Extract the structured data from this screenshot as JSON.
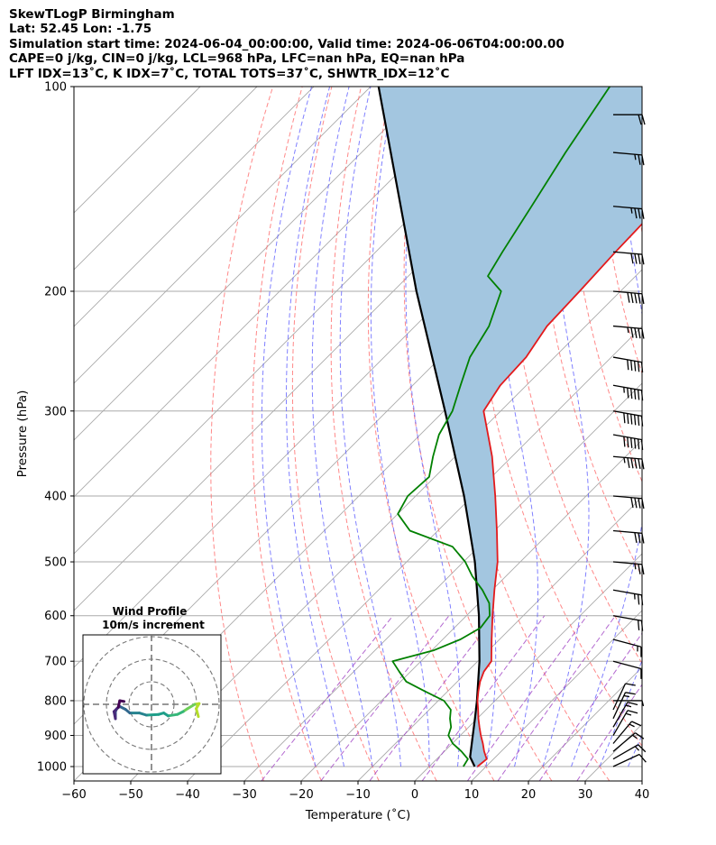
{
  "header": {
    "line1": "SkewTLogP Birmingham",
    "line2": "Lat: 52.45   Lon: -1.75",
    "line3": "Simulation start time: 2024-06-04_00:00:00, Valid time: 2024-06-06T04:00:00.00",
    "line4": "CAPE=0 j/kg, CIN=0 j/kg, LCL=968 hPa, LFC=nan hPa, EQ=nan hPa",
    "line5": "LFT IDX=13˚C, K IDX=7˚C, TOTAL TOTS=37˚C, SHWTR_IDX=12˚C"
  },
  "colors": {
    "temperature": "#e31a1c",
    "dewpoint": "#008000",
    "parcel": "#000000",
    "shading": "#a3c6e0",
    "dry_adiabats": "#ff6a6a",
    "moist_adiabats": "#5555ff",
    "mixing_ratio": "#a64dc8",
    "isotherms": "#aaaaaa"
  },
  "chart_data": {
    "type": "skew-t log-p",
    "xlabel": "Temperature (˚C)",
    "ylabel": "Pressure (hPa)",
    "xlim": [
      -60,
      40
    ],
    "ylim": [
      1050,
      100
    ],
    "x_ticks": [
      "−60",
      "−50",
      "−40",
      "−30",
      "−20",
      "−10",
      "0",
      "10",
      "20",
      "30",
      "40"
    ],
    "x_tick_values": [
      -60,
      -50,
      -40,
      -30,
      -20,
      -10,
      0,
      10,
      20,
      30,
      40
    ],
    "y_ticks": [
      "1000",
      "900",
      "800",
      "700",
      "600",
      "500",
      "400",
      "300",
      "200",
      "100"
    ],
    "y_tick_values": [
      1000,
      900,
      800,
      700,
      600,
      500,
      400,
      300,
      200,
      100
    ],
    "y_scale": "log",
    "grid": true,
    "series": [
      {
        "key": "temperature",
        "pressure": [
          1000,
          975,
          950,
          925,
          900,
          875,
          850,
          825,
          800,
          775,
          750,
          725,
          700,
          650,
          600,
          550,
          500,
          450,
          400,
          350,
          300,
          275,
          250,
          225,
          200,
          175,
          150,
          125,
          100
        ],
        "temp": [
          8.5,
          8.8,
          7.0,
          5.4,
          3.6,
          1.9,
          0.2,
          -1.4,
          -3.1,
          -4.6,
          -6.0,
          -7.1,
          -7.6,
          -11.4,
          -15.4,
          -19.6,
          -24.0,
          -29.6,
          -36.0,
          -43.5,
          -53.0,
          -54.6,
          -55.0,
          -56.8,
          -57.2,
          -57.8,
          -58.2,
          -59.6,
          -60.4
        ]
      },
      {
        "key": "dewpoint",
        "pressure": [
          1000,
          975,
          950,
          925,
          900,
          875,
          850,
          825,
          800,
          775,
          750,
          725,
          700,
          675,
          650,
          625,
          600,
          575,
          550,
          525,
          500,
          475,
          450,
          425,
          400,
          375,
          350,
          325,
          300,
          275,
          250,
          225,
          200,
          190,
          175,
          150,
          125,
          100
        ],
        "temp": [
          6.0,
          5.5,
          3.0,
          0.1,
          -2.1,
          -3.1,
          -4.8,
          -6.2,
          -9.0,
          -14.0,
          -19.0,
          -22.0,
          -25.0,
          -19.7,
          -16.9,
          -15.4,
          -15.9,
          -18.2,
          -21.7,
          -25.9,
          -29.7,
          -34.6,
          -44.9,
          -50.0,
          -51.4,
          -51.0,
          -53.9,
          -56.7,
          -58.5,
          -61.6,
          -64.9,
          -67.0,
          -71.0,
          -76.0,
          -77.7,
          -80.6,
          -84.1,
          -87.9
        ]
      },
      {
        "key": "parcel",
        "pressure": [
          1000,
          968,
          900,
          850,
          800,
          700,
          600,
          500,
          400,
          300,
          200,
          100
        ],
        "temp": [
          8.0,
          5.5,
          2.2,
          -0.4,
          -3.2,
          -9.7,
          -17.8,
          -28.0,
          -41.5,
          -59.8,
          -85.9,
          -128.6
        ]
      }
    ]
  },
  "inset": {
    "title1": "Wind Profile",
    "title2": "10m/s increment",
    "hodograph": {
      "u": [
        6.5,
        6.2,
        6.6,
        6.0,
        5.0,
        4.4,
        3.6,
        2.3,
        1.7,
        1.0,
        -0.7,
        -1.7,
        -3.0,
        -3.6,
        -4.4,
        -4.8,
        -5.0,
        -5.0,
        -5.2,
        -4.6,
        -4.4,
        -3.8
      ],
      "v": [
        -1.7,
        -0.6,
        0.1,
        0.0,
        -0.6,
        -1.0,
        -1.4,
        -1.6,
        -1.2,
        -1.4,
        -1.5,
        -1.2,
        -1.2,
        -0.7,
        -0.3,
        -0.6,
        -1.0,
        -2.0,
        -1.0,
        -0.4,
        0.5,
        0.4
      ],
      "ring_step": 10
    }
  },
  "wind_barbs": {
    "pressure": [
      1000,
      975,
      950,
      925,
      900,
      875,
      850,
      825,
      800,
      700,
      650,
      600,
      550,
      500,
      450,
      400,
      350,
      325,
      300,
      275,
      250,
      225,
      200,
      175,
      150,
      125,
      110
    ],
    "speed_kt": [
      10,
      15,
      15,
      15,
      15,
      15,
      15,
      10,
      5,
      10,
      15,
      20,
      25,
      25,
      30,
      40,
      55,
      60,
      60,
      55,
      50,
      45,
      50,
      40,
      35,
      25,
      20
    ],
    "dir_deg": [
      245,
      240,
      230,
      220,
      210,
      210,
      205,
      205,
      270,
      285,
      285,
      280,
      280,
      275,
      275,
      275,
      275,
      280,
      280,
      280,
      280,
      275,
      275,
      275,
      275,
      275,
      270
    ]
  }
}
